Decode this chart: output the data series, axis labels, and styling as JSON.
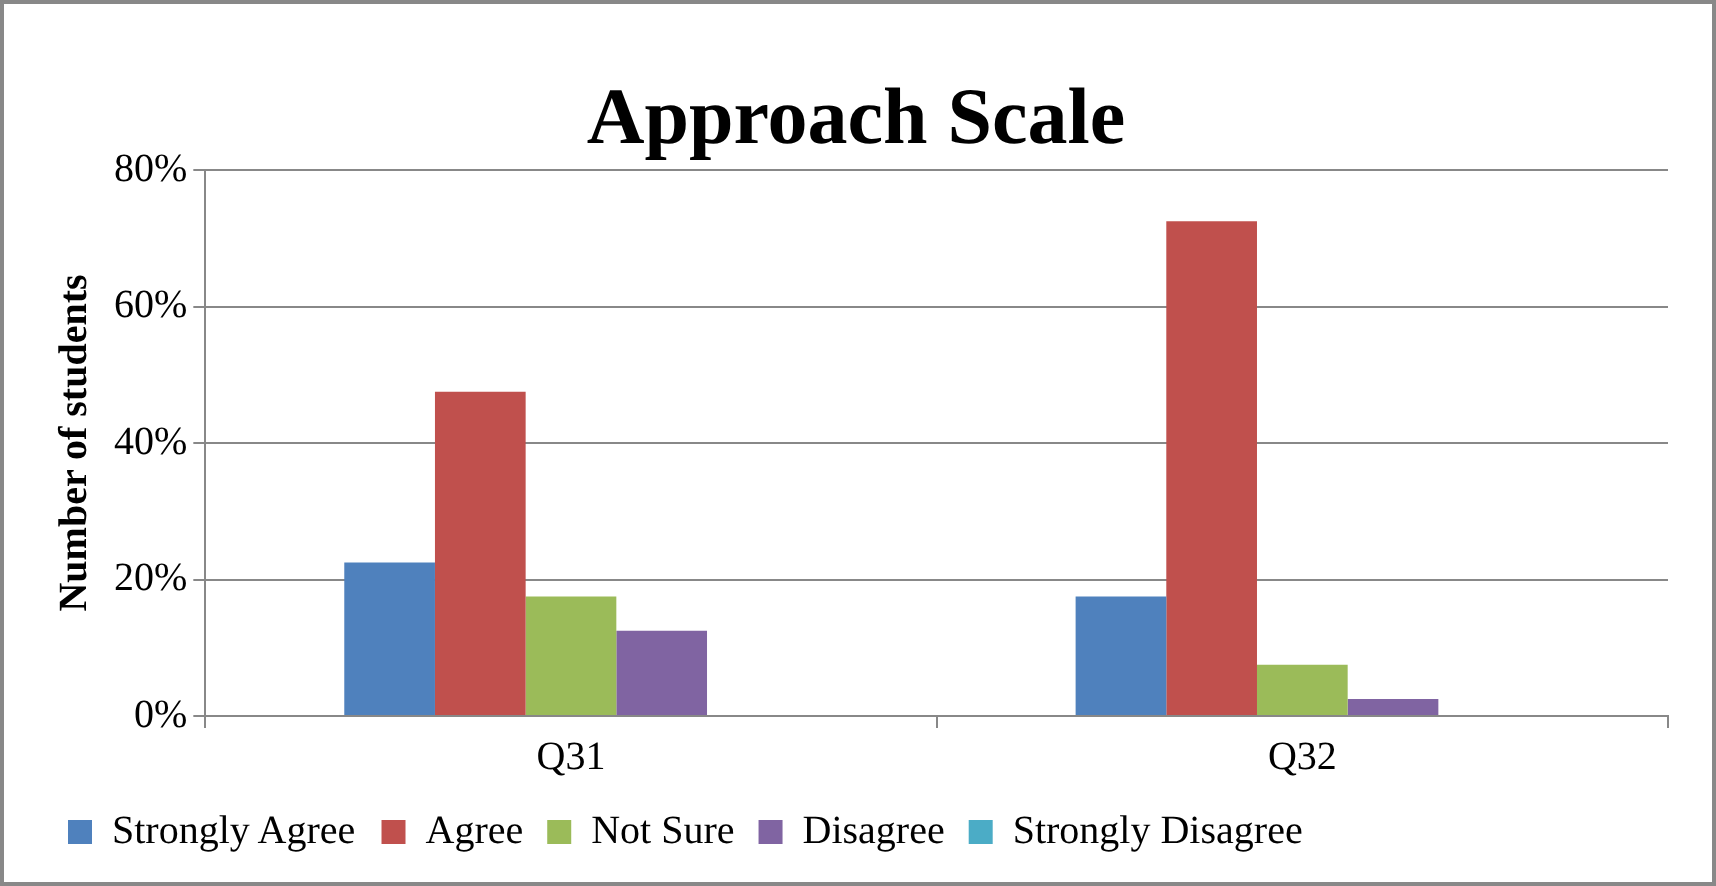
{
  "chart_data": {
    "type": "bar",
    "title": "Approach Scale",
    "ylabel": "Number of students",
    "categories": [
      "Q31",
      "Q32"
    ],
    "series": [
      {
        "name": "Strongly Agree",
        "color": "#4f81bd",
        "values": [
          22.5,
          17.5
        ]
      },
      {
        "name": "Agree",
        "color": "#c0504d",
        "values": [
          47.5,
          72.5
        ]
      },
      {
        "name": "Not Sure",
        "color": "#9bbb59",
        "values": [
          17.5,
          7.5
        ]
      },
      {
        "name": "Disagree",
        "color": "#8064a2",
        "values": [
          12.5,
          2.5
        ]
      },
      {
        "name": "Strongly Disagree",
        "color": "#4bacc6",
        "values": [
          0,
          0
        ]
      }
    ],
    "ylim": [
      0,
      80
    ],
    "yticks": [
      {
        "value": 0,
        "label": "0%"
      },
      {
        "value": 20,
        "label": "20%"
      },
      {
        "value": 40,
        "label": "40%"
      },
      {
        "value": 60,
        "label": "60%"
      },
      {
        "value": 80,
        "label": "80%"
      }
    ],
    "grid": "y",
    "legend": "bottom"
  }
}
